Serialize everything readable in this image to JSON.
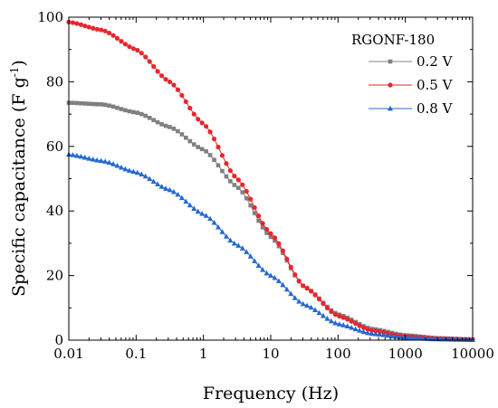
{
  "chart_data": {
    "type": "line",
    "xlabel": "Frequency (Hz)",
    "ylabel_main": "Specific capacitance (F g",
    "ylabel_sup": "-1",
    "ylabel_close": ")",
    "x_scale": "log",
    "xlim": [
      0.01,
      10000
    ],
    "ylim": [
      0,
      100
    ],
    "x_ticks": [
      0.01,
      0.1,
      1,
      10,
      100,
      1000,
      10000
    ],
    "x_tick_labels": [
      "0.01",
      "0.1",
      "1",
      "10",
      "100",
      "1000",
      "10000"
    ],
    "y_ticks": [
      0,
      20,
      40,
      60,
      80,
      100
    ],
    "y_tick_labels": [
      "0",
      "20",
      "40",
      "60",
      "80",
      "100"
    ],
    "grid": false,
    "legend_title": "RGONF-180",
    "legend_position": "top-right",
    "series": [
      {
        "name": "0.2 V",
        "color": "#808080",
        "marker": "square",
        "x": [
          0.01,
          0.0316,
          0.1,
          0.316,
          1,
          3.16,
          10,
          31.6,
          100,
          316,
          1000,
          3162,
          10000
        ],
        "y": [
          73.5,
          73,
          70.5,
          66,
          59,
          47.5,
          32,
          16.5,
          8,
          3.5,
          1.5,
          0.6,
          0.2
        ]
      },
      {
        "name": "0.5 V",
        "color": "#e8262c",
        "marker": "circle",
        "x": [
          0.01,
          0.0316,
          0.1,
          0.316,
          1,
          3.16,
          10,
          31.6,
          100,
          316,
          1000,
          3162,
          10000
        ],
        "y": [
          98.5,
          96,
          90,
          80,
          67,
          50,
          33,
          16.5,
          7.5,
          3,
          1.2,
          0.5,
          0.2
        ]
      },
      {
        "name": "0.8 V",
        "color": "#2369d2",
        "marker": "triangle",
        "x": [
          0.01,
          0.0316,
          0.1,
          0.316,
          1,
          3.16,
          10,
          31.6,
          100,
          316,
          1000,
          3162,
          10000
        ],
        "y": [
          57.5,
          55.5,
          52,
          46.5,
          39,
          29.5,
          20,
          11,
          5,
          2,
          0.8,
          0.3,
          0.1
        ]
      }
    ]
  }
}
